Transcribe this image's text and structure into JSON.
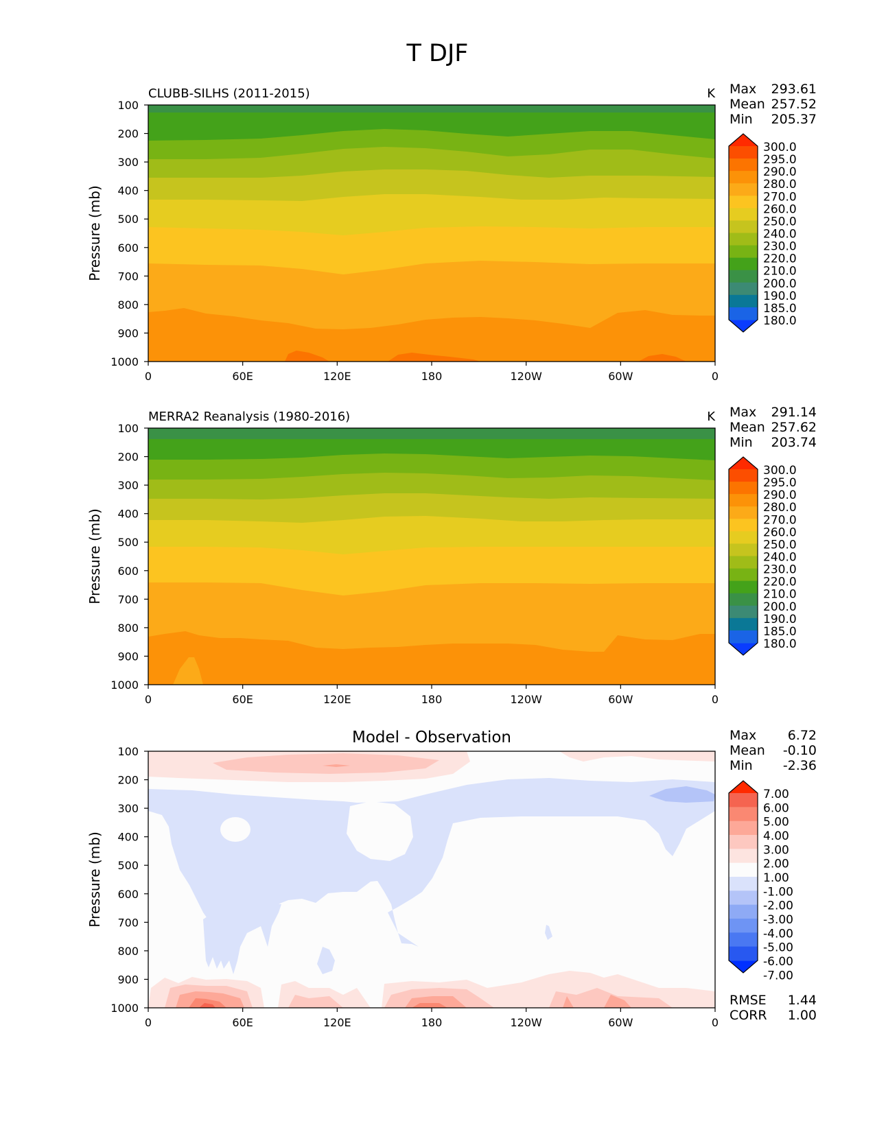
{
  "figure_title": "T DJF",
  "colorbars": {
    "fields": [
      "300.0",
      "295.0",
      "290.0",
      "280.0",
      "270.0",
      "260.0",
      "250.0",
      "240.0",
      "230.0",
      "220.0",
      "210.0",
      "200.0",
      "190.0",
      "185.0",
      "180.0"
    ],
    "diff": [
      "7.00",
      "6.00",
      "5.00",
      "4.00",
      "3.00",
      "2.00",
      "1.00",
      "-1.00",
      "-2.00",
      "-3.00",
      "-4.00",
      "-5.00",
      "-6.00",
      "-7.00"
    ]
  },
  "colors": {
    "field_bands_low_to_high": [
      "#0a3cff",
      "#1a64e6",
      "#0a7896",
      "#3c8a74",
      "#3a9146",
      "#44a21a",
      "#78b314",
      "#a0bc18",
      "#c6c41e",
      "#e6cc20",
      "#fcc420",
      "#fcaa18",
      "#fc9208",
      "#fc7400",
      "#fc4e00",
      "#ff2a00"
    ],
    "diff_bands_low_to_high": [
      "#0030ff",
      "#2858f0",
      "#4a78f2",
      "#6e94f4",
      "#8eaaf5",
      "#b4c4f8",
      "#dae2fb",
      "#fcfcfc",
      "#fde4e0",
      "#fdc8c0",
      "#fda898",
      "#fa8872",
      "#f56450",
      "#ff2a00"
    ]
  },
  "chart_data": [
    {
      "type": "contour",
      "title": "CLUBB-SILHS (2011-2015)",
      "units": "K",
      "stats": {
        "max": "293.61",
        "mean": "257.52",
        "min": "205.37"
      },
      "xlabel": "",
      "ylabel": "Pressure (mb)",
      "xticks": [
        "0",
        "60E",
        "120E",
        "180",
        "120W",
        "60W",
        "0"
      ],
      "xtick_values": [
        0,
        60,
        120,
        180,
        240,
        300,
        360
      ],
      "yticks": [
        "100",
        "200",
        "300",
        "400",
        "500",
        "600",
        "700",
        "800",
        "900",
        "1000"
      ],
      "ytick_values": [
        100,
        200,
        300,
        400,
        500,
        600,
        700,
        800,
        900,
        1000
      ],
      "xlim": [
        0,
        360
      ],
      "ylim": [
        1000,
        100
      ],
      "levels": [
        180,
        185,
        190,
        200,
        210,
        220,
        230,
        240,
        250,
        260,
        270,
        280,
        290,
        295,
        300
      ],
      "approx_boundary_pressure_mb": {
        "210": 150,
        "220": 215,
        "230": 285,
        "240": 350,
        "250": 430,
        "260": 525,
        "270": 670,
        "280": 845,
        "290": 990
      }
    },
    {
      "type": "contour",
      "title": "MERRA2 Reanalysis (1980-2016)",
      "units": "K",
      "stats": {
        "max": "291.14",
        "mean": "257.62",
        "min": "203.74"
      },
      "xlabel": "",
      "ylabel": "Pressure (mb)",
      "xticks": [
        "0",
        "60E",
        "120E",
        "180",
        "120W",
        "60W",
        "0"
      ],
      "xtick_values": [
        0,
        60,
        120,
        180,
        240,
        300,
        360
      ],
      "yticks": [
        "100",
        "200",
        "300",
        "400",
        "500",
        "600",
        "700",
        "800",
        "900",
        "1000"
      ],
      "ytick_values": [
        100,
        200,
        300,
        400,
        500,
        600,
        700,
        800,
        900,
        1000
      ],
      "xlim": [
        0,
        360
      ],
      "ylim": [
        1000,
        100
      ],
      "levels": [
        180,
        185,
        190,
        200,
        210,
        220,
        230,
        240,
        250,
        260,
        270,
        280,
        290,
        295,
        300
      ],
      "approx_boundary_pressure_mb": {
        "210": 135,
        "220": 205,
        "230": 270,
        "240": 340,
        "250": 410,
        "260": 505,
        "270": 650,
        "280": 830
      }
    },
    {
      "type": "contour",
      "title": "Model - Observation",
      "units": "",
      "stats": {
        "max": "6.72",
        "mean": "-0.10",
        "min": "-2.36"
      },
      "metrics": {
        "rmse_label": "RMSE",
        "rmse": "1.44",
        "corr_label": "CORR",
        "corr": "1.00"
      },
      "xlabel": "",
      "ylabel": "Pressure (mb)",
      "xticks": [
        "0",
        "60E",
        "120E",
        "180",
        "120W",
        "60W",
        "0"
      ],
      "xtick_values": [
        0,
        60,
        120,
        180,
        240,
        300,
        360
      ],
      "yticks": [
        "100",
        "200",
        "300",
        "400",
        "500",
        "600",
        "700",
        "800",
        "900",
        "1000"
      ],
      "ytick_values": [
        100,
        200,
        300,
        400,
        500,
        600,
        700,
        800,
        900,
        1000
      ],
      "xlim": [
        0,
        360
      ],
      "ylim": [
        1000,
        100
      ],
      "levels": [
        -7,
        -6,
        -5,
        -4,
        -3,
        -2,
        -1,
        1,
        2,
        3,
        4,
        5,
        6,
        7
      ]
    }
  ],
  "stat_labels": {
    "max": "Max",
    "mean": "Mean",
    "min": "Min"
  }
}
